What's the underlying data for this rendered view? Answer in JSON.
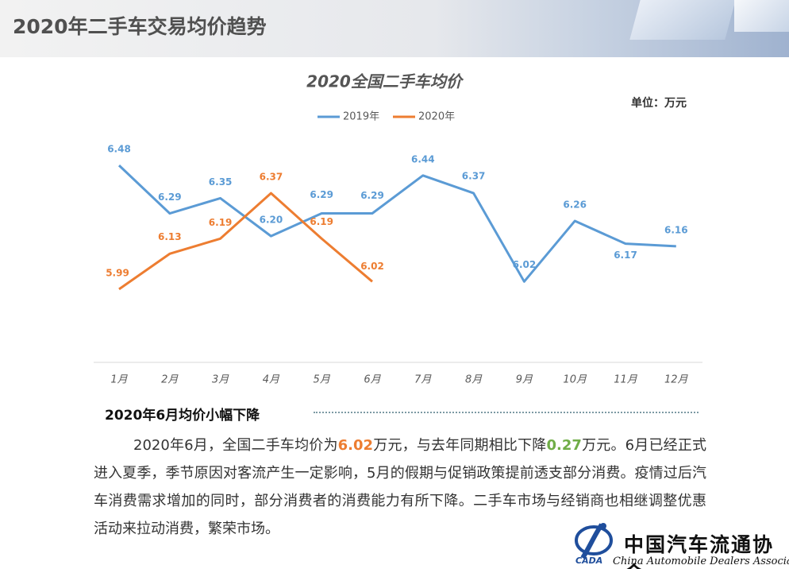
{
  "header": {
    "title": "2020年二手车交易均价趋势"
  },
  "chart_data": {
    "type": "line",
    "title": "2020全国二手车均价",
    "unit_label": "单位：万元",
    "categories": [
      "1月",
      "2月",
      "3月",
      "4月",
      "5月",
      "6月",
      "7月",
      "8月",
      "9月",
      "10月",
      "11月",
      "12月"
    ],
    "series": [
      {
        "name": "2019年",
        "color": "#5b9bd5",
        "values": [
          6.48,
          6.29,
          6.35,
          6.2,
          6.29,
          6.29,
          6.44,
          6.37,
          6.02,
          6.26,
          6.17,
          6.16
        ],
        "value_labels": [
          "6.48",
          "6.29",
          "6.35",
          "6.20",
          "6.29",
          "6.29",
          "6.44",
          "6.37",
          "6.02",
          "6.26",
          "6.17",
          "6.16"
        ]
      },
      {
        "name": "2020年",
        "color": "#ed7d31",
        "values": [
          5.99,
          6.13,
          6.19,
          6.37,
          6.19,
          6.02,
          null,
          null,
          null,
          null,
          null,
          null
        ],
        "value_labels": [
          "5.99",
          "6.13",
          "6.19",
          "6.37",
          "6.19",
          "6.02",
          null,
          null,
          null,
          null,
          null,
          null
        ]
      }
    ],
    "ylim": [
      5.7,
      6.6
    ],
    "legend": "top"
  },
  "section": {
    "heading": "2020年6月均价小幅下降",
    "paragraph": [
      "2020年6月，全国二手车均价为",
      "6.02",
      "万元，与去年同期相比下降",
      "0.27",
      "万元。6月已经正式进入夏季，季节原因对客流产生一定影响，5月的假期与促销政策提前透支部分消费。疫情过后汽车消费需求增加的同时，部分消费者的消费能力有所下降。二手车市场与经销商也相继调整优惠活动来拉动消费，繁荣市场。"
    ]
  },
  "logo": {
    "cn": "中国汽车流通协会",
    "en": "China Automobile Dealers Association",
    "abbr": "CADA"
  }
}
